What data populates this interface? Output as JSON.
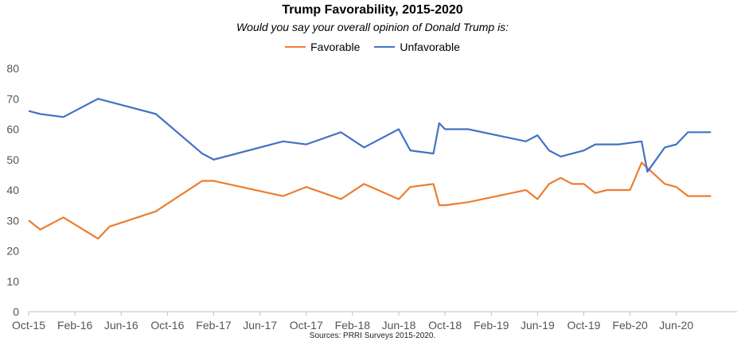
{
  "chart_data": {
    "type": "line",
    "title": "Trump Favorability, 2015-2020",
    "subtitle": "Would you say your overall opinion of Donald Trump is:",
    "source": "Sources: PRRI Surveys 2015-2020.",
    "legend_position": "top",
    "ylim": [
      0,
      80
    ],
    "yticks": [
      0,
      10,
      20,
      30,
      40,
      50,
      60,
      70,
      80
    ],
    "xlim": [
      "2015-10",
      "2020-10"
    ],
    "xticks": [
      "Oct-15",
      "Feb-16",
      "Jun-16",
      "Oct-16",
      "Feb-17",
      "Jun-17",
      "Oct-17",
      "Feb-18",
      "Jun-18",
      "Oct-18",
      "Feb-19",
      "Jun-19",
      "Oct-19",
      "Feb-20",
      "Jun-20"
    ],
    "grid": false,
    "series": [
      {
        "name": "Favorable",
        "color": "#ed7d31",
        "points": [
          [
            "2015-10",
            30
          ],
          [
            "2015-11",
            27
          ],
          [
            "2016-01",
            31
          ],
          [
            "2016-04",
            24
          ],
          [
            "2016-05",
            28
          ],
          [
            "2016-09",
            33
          ],
          [
            "2017-01",
            43
          ],
          [
            "2017-02",
            43
          ],
          [
            "2017-08",
            38
          ],
          [
            "2017-10",
            41
          ],
          [
            "2018-01",
            37
          ],
          [
            "2018-03",
            42
          ],
          [
            "2018-06",
            37
          ],
          [
            "2018-07",
            41
          ],
          [
            "2018-09",
            42
          ],
          [
            "2018-09.5",
            35
          ],
          [
            "2018-10",
            35
          ],
          [
            "2018-12",
            36
          ],
          [
            "2019-05",
            40
          ],
          [
            "2019-06",
            37
          ],
          [
            "2019-07",
            42
          ],
          [
            "2019-08",
            44
          ],
          [
            "2019-09",
            42
          ],
          [
            "2019-10",
            42
          ],
          [
            "2019-11",
            39
          ],
          [
            "2019-12",
            40
          ],
          [
            "2020-02",
            40
          ],
          [
            "2020-03",
            49
          ],
          [
            "2020-05",
            42
          ],
          [
            "2020-06",
            41
          ],
          [
            "2020-07",
            38
          ],
          [
            "2020-09",
            38
          ]
        ]
      },
      {
        "name": "Unfavorable",
        "color": "#4472c4",
        "points": [
          [
            "2015-10",
            66
          ],
          [
            "2015-11",
            65
          ],
          [
            "2016-01",
            64
          ],
          [
            "2016-04",
            70
          ],
          [
            "2016-09",
            65
          ],
          [
            "2017-01",
            52
          ],
          [
            "2017-02",
            50
          ],
          [
            "2017-08",
            56
          ],
          [
            "2017-10",
            55
          ],
          [
            "2018-01",
            59
          ],
          [
            "2018-03",
            54
          ],
          [
            "2018-06",
            60
          ],
          [
            "2018-07",
            53
          ],
          [
            "2018-09",
            52
          ],
          [
            "2018-09.5",
            62
          ],
          [
            "2018-10",
            60
          ],
          [
            "2018-12",
            60
          ],
          [
            "2019-05",
            56
          ],
          [
            "2019-06",
            58
          ],
          [
            "2019-07",
            53
          ],
          [
            "2019-08",
            51
          ],
          [
            "2019-10",
            53
          ],
          [
            "2019-11",
            55
          ],
          [
            "2020-01",
            55
          ],
          [
            "2020-03",
            56
          ],
          [
            "2020-03.5",
            46
          ],
          [
            "2020-05",
            54
          ],
          [
            "2020-06",
            55
          ],
          [
            "2020-07",
            59
          ],
          [
            "2020-09",
            59
          ]
        ]
      }
    ]
  }
}
